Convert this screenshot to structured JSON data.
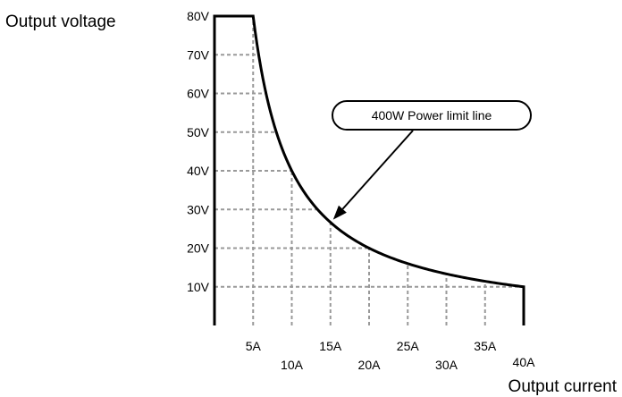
{
  "chart_data": {
    "type": "line",
    "title": "",
    "xlabel": "Output current",
    "ylabel": "Output voltage",
    "xlim": [
      0,
      40
    ],
    "ylim": [
      0,
      80
    ],
    "grid": true,
    "x_ticks": [
      {
        "value": 5,
        "label": "5A"
      },
      {
        "value": 10,
        "label": "10A"
      },
      {
        "value": 15,
        "label": "15A"
      },
      {
        "value": 20,
        "label": "20A"
      },
      {
        "value": 25,
        "label": "25A"
      },
      {
        "value": 30,
        "label": "30A"
      },
      {
        "value": 35,
        "label": "35A"
      },
      {
        "value": 40,
        "label": "40A"
      }
    ],
    "y_ticks": [
      {
        "value": 10,
        "label": "10V"
      },
      {
        "value": 20,
        "label": "20V"
      },
      {
        "value": 30,
        "label": "30V"
      },
      {
        "value": 40,
        "label": "40V"
      },
      {
        "value": 50,
        "label": "50V"
      },
      {
        "value": 60,
        "label": "60V"
      },
      {
        "value": 70,
        "label": "70V"
      },
      {
        "value": 80,
        "label": "80V"
      }
    ],
    "power_limit_w": 400,
    "boundary": {
      "max_voltage": 80,
      "max_current": 40,
      "curve_from_current": 5,
      "curve_to_current": 40
    },
    "annotation": {
      "text": "400W  Power limit line",
      "points_to_current": 15
    }
  }
}
